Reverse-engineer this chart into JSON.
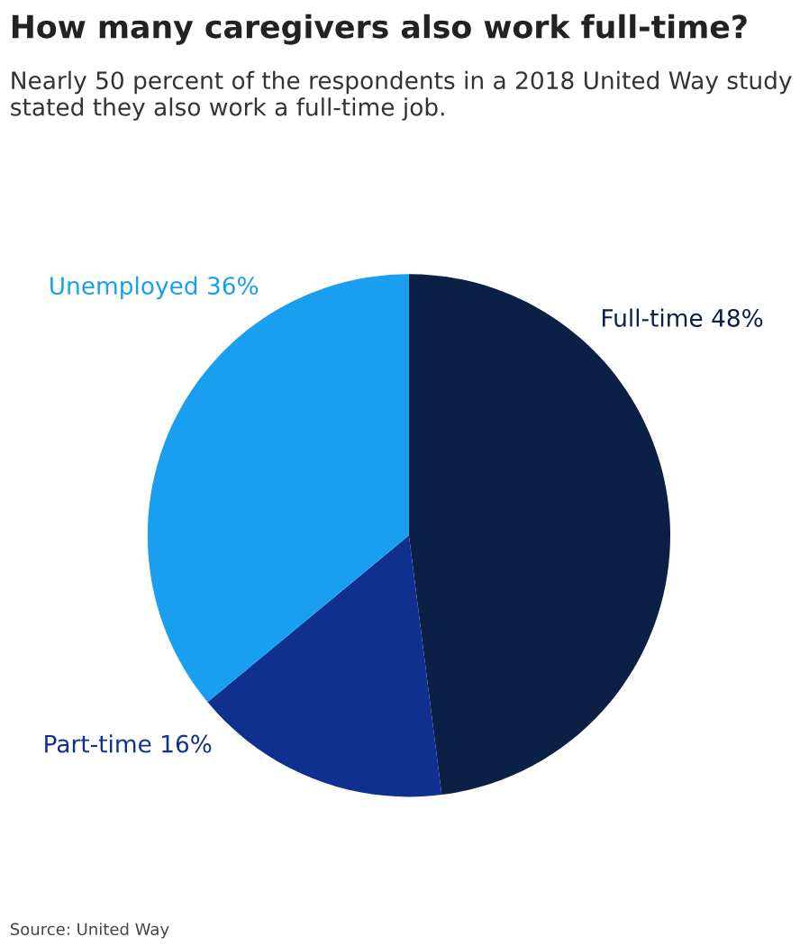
{
  "chart_data": {
    "type": "pie",
    "title": "How many caregivers also work full-time?",
    "subtitle": "Nearly 50 percent of the respondents in a 2018 United Way study stated they also work a full-time job.",
    "categories": [
      "Full-time 48%",
      "Part-time 16%",
      "Unemployed 36%"
    ],
    "values": [
      48,
      16,
      36
    ],
    "colors": [
      "#0c1f45",
      "#10308f",
      "#1a9ff0"
    ],
    "annotations": [
      "Source: United Way"
    ]
  }
}
